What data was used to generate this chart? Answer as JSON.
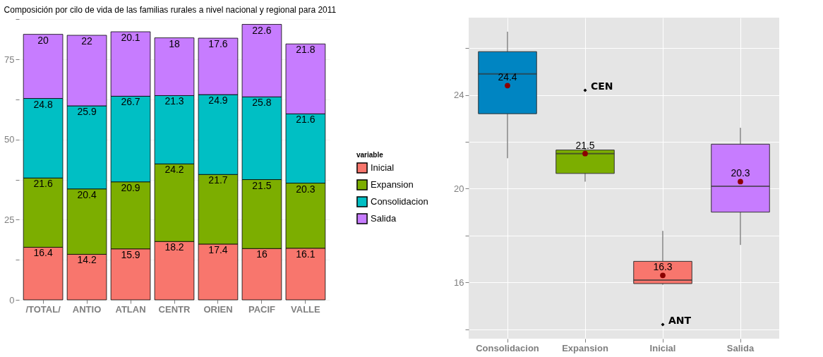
{
  "chart_data": [
    {
      "type": "bar",
      "title": "Composición por cilo de vida de las familias rurales a nivel nacional y regional para 2011",
      "categories": [
        "/TOTAL/",
        "ANTIO",
        "ATLAN",
        "CENTR",
        "ORIEN",
        "PACIF",
        "VALLE"
      ],
      "stacked": true,
      "data_labels": true,
      "legend": "right",
      "legend_title": "variable",
      "grid": "y",
      "ylim": [
        0,
        88
      ],
      "yticks": [
        0,
        {
          "value": 12.5,
          "label": null
        },
        25,
        {
          "value": 37.5,
          "label": null
        },
        50,
        {
          "value": 62.5,
          "label": null
        },
        75,
        {
          "value": 87.5,
          "label": null
        }
      ],
      "series": [
        {
          "name": "Inicial",
          "color": "#f8766d",
          "values": [
            16.4,
            14.2,
            15.9,
            18.2,
            17.4,
            16,
            16.1
          ]
        },
        {
          "name": "Expansion",
          "color": "#7cae00",
          "values": [
            21.6,
            20.4,
            20.9,
            24.2,
            21.7,
            21.5,
            20.3
          ]
        },
        {
          "name": "Consolidacion",
          "color": "#00bfc4",
          "values": [
            24.8,
            25.9,
            26.7,
            21.3,
            24.9,
            25.8,
            21.6
          ]
        },
        {
          "name": "Salida",
          "color": "#c77cff",
          "values": [
            20,
            22,
            20.1,
            18,
            17.6,
            22.6,
            21.8
          ]
        }
      ]
    },
    {
      "type": "box",
      "categories": [
        "Consolidacion",
        "Expansion",
        "Inicial",
        "Salida"
      ],
      "colors": [
        "#0085c2",
        "#7cae00",
        "#f8766d",
        "#c77cff"
      ],
      "grid": true,
      "ylim": [
        13.6,
        27.3
      ],
      "yticks": [
        {
          "value": 14,
          "label": null
        },
        16,
        {
          "value": 18,
          "label": null
        },
        20,
        {
          "value": 22,
          "label": null
        },
        24,
        {
          "value": 26,
          "label": null
        }
      ],
      "boxes": [
        {
          "low": 21.3,
          "q1": 23.2,
          "median": 24.9,
          "q3": 25.85,
          "high": 26.7,
          "mean": 24.4
        },
        {
          "low": 20.3,
          "q1": 20.65,
          "median": 21.5,
          "q3": 21.65,
          "high": 21.7,
          "mean": 21.5
        },
        {
          "low": 15.9,
          "q1": 15.95,
          "median": 16.1,
          "q3": 16.9,
          "high": 18.2,
          "mean": 16.3
        },
        {
          "low": 17.6,
          "q1": 19,
          "median": 20.1,
          "q3": 21.9,
          "high": 22.6,
          "mean": 20.3
        }
      ],
      "series": [
        {
          "type": "scatter",
          "color": "#000000",
          "x": [
            "Expansion",
            "Inicial"
          ],
          "values": [
            24.2,
            14.2
          ]
        }
      ],
      "annotations": [
        {
          "text": "24.4",
          "x": "Consolidacion",
          "y": 24.4
        },
        {
          "text": "21.5",
          "x": "Expansion",
          "y": 21.5
        },
        {
          "text": "16.3",
          "x": "Inicial",
          "y": 16.3
        },
        {
          "text": "20.3",
          "x": "Salida",
          "y": 20.3
        },
        {
          "text": "CEN",
          "x": "Expansion",
          "y": 24.2
        },
        {
          "text": "ANT",
          "x": "Inicial",
          "y": 14.2
        }
      ]
    }
  ]
}
